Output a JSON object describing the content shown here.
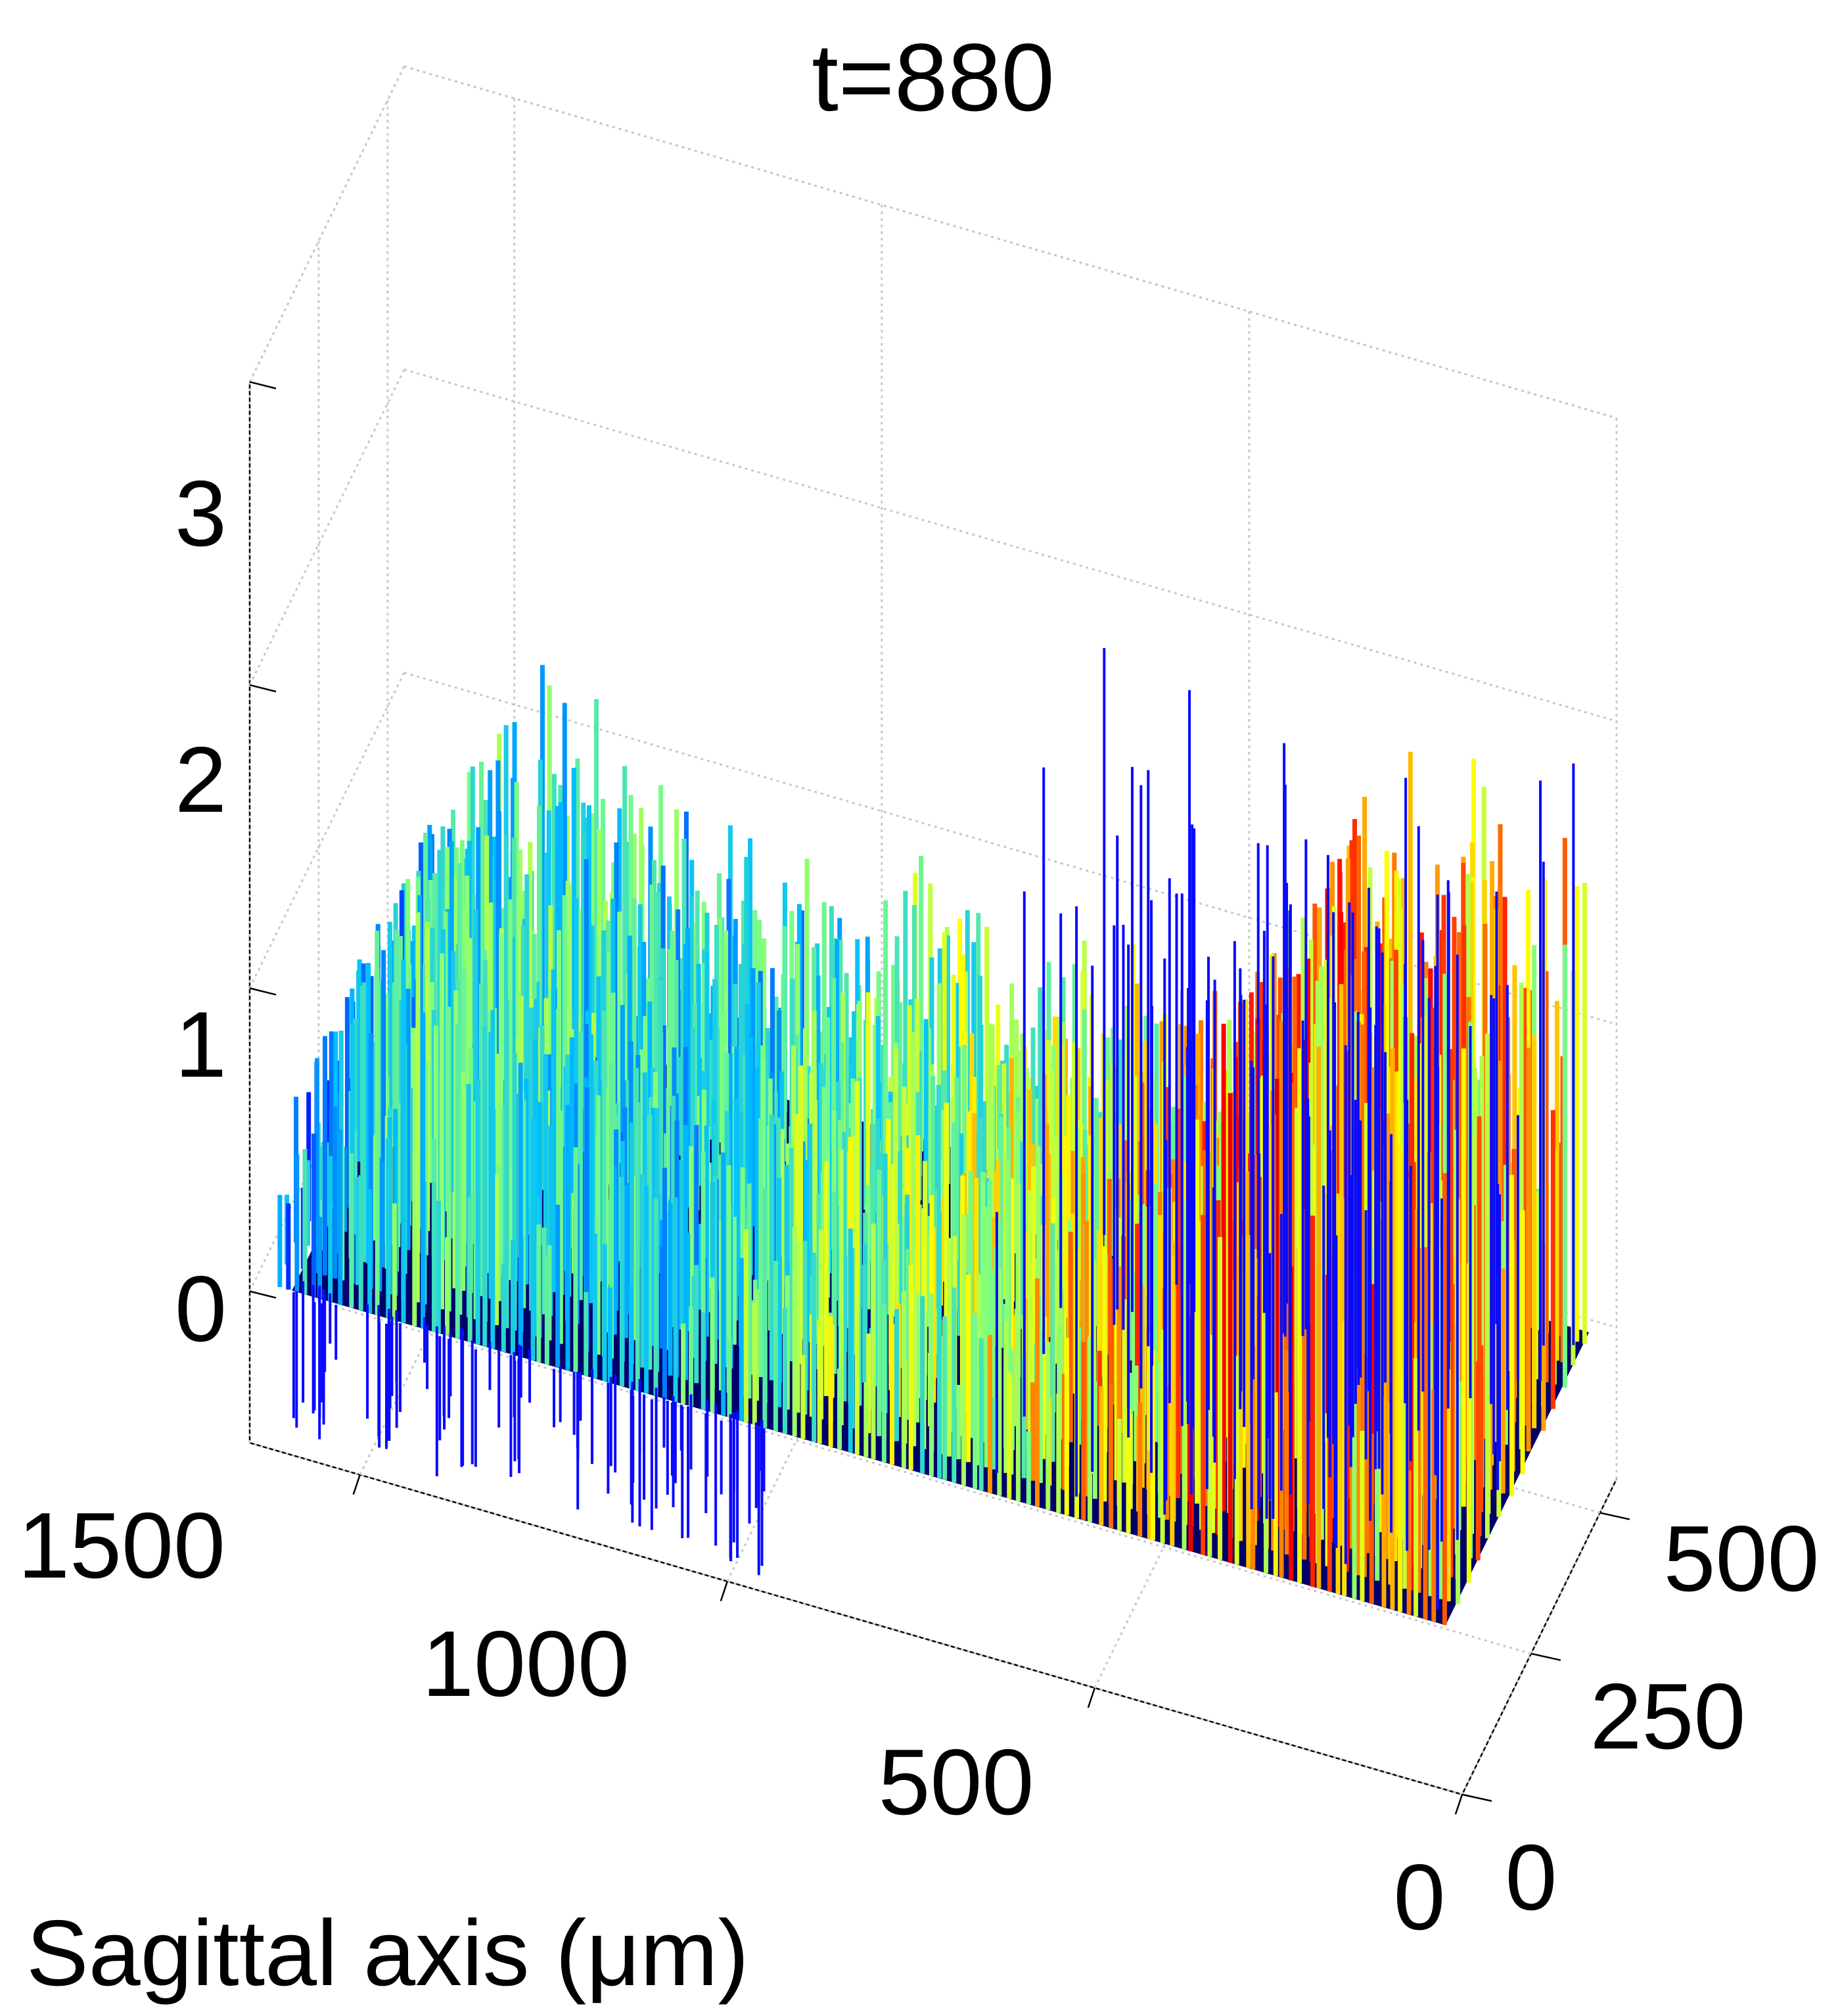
{
  "chart_data": {
    "type": "surface",
    "title": "t=880",
    "xlabel": "Sagittal axis (μm)",
    "ylabel": "",
    "zlabel": "",
    "x_ticks": [
      "1500",
      "1000",
      "500",
      "0"
    ],
    "y_ticks": [
      "0",
      "250",
      "500"
    ],
    "z_ticks": [
      "0",
      "1",
      "2",
      "3"
    ],
    "xlim": [
      0,
      1650
    ],
    "ylim": [
      0,
      560
    ],
    "zlim": [
      -0.5,
      3
    ],
    "grid": true,
    "colormap": "jet",
    "colormap_colors": [
      "#00008f",
      "#0000ff",
      "#00bfff",
      "#7fff7f",
      "#ffff00",
      "#ff7f00",
      "#ff0000",
      "#800000"
    ],
    "series": [
      {
        "x": [
          1650,
          1550,
          1450,
          1350,
          1250,
          1150,
          1050,
          950,
          850,
          750,
          650,
          550,
          450,
          350,
          250,
          150,
          50
        ],
        "typical_peak_z": [
          0.4,
          0.9,
          1.3,
          1.2,
          1.0,
          1.0,
          0.9,
          1.0,
          0.9,
          0.9,
          0.9,
          0.9,
          1.0,
          1.7,
          2.0,
          1.9,
          1.8
        ],
        "typical_min_z": [
          -0.2,
          -0.3,
          -0.4,
          -0.4,
          -0.4,
          -0.4,
          -0.3,
          -0.2,
          -0.1,
          0,
          0,
          0,
          0,
          0,
          0,
          0,
          0
        ],
        "typical_color_value": [
          0.25,
          0.45,
          0.5,
          0.5,
          0.45,
          0.45,
          0.45,
          0.55,
          0.6,
          0.65,
          0.7,
          0.8,
          0.85,
          0.9,
          0.9,
          0.85,
          0.8
        ]
      }
    ]
  }
}
